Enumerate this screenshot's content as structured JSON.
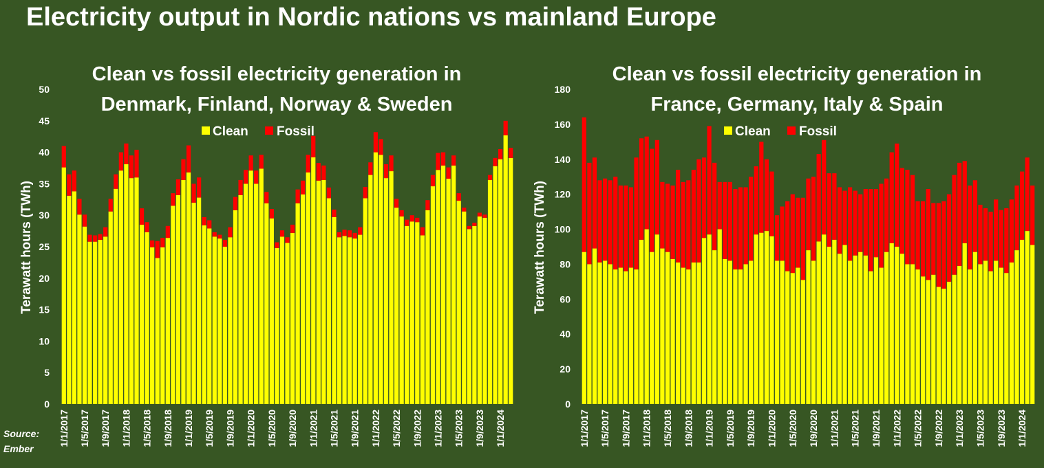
{
  "page": {
    "title": "Electricity output in Nordic nations vs mainland Europe",
    "source_line1": "Source:",
    "source_line2": "Ember"
  },
  "colors": {
    "background": "#375623",
    "clean": "#ffff00",
    "fossil": "#ff0000",
    "text": "#ffffff"
  },
  "chart_data": [
    {
      "type": "bar",
      "stacked": true,
      "title_line1": "Clean vs fossil electricity generation in",
      "title_line2": "Denmark, Finland, Norway & Sweden",
      "ylabel": "Terawatt hours (TWh)",
      "ylim": [
        0,
        50
      ],
      "yticks": [
        0,
        5,
        10,
        15,
        20,
        25,
        30,
        35,
        40,
        45,
        50
      ],
      "grid": false,
      "legend": "top-center",
      "tick_labels": [
        "1/1/2017",
        "1/5/2017",
        "1/9/2017",
        "1/1/2018",
        "1/5/2018",
        "1/9/2018",
        "1/1/2019",
        "1/5/2019",
        "1/9/2019",
        "1/1/2020",
        "1/5/2020",
        "1/9/2020",
        "1/1/2021",
        "1/5/2021",
        "1/9/2021",
        "1/1/2022",
        "1/5/2022",
        "1/9/2022",
        "1/1/2023",
        "1/5/2023",
        "1/9/2023",
        "1/1/2024"
      ],
      "series": [
        {
          "name": "Clean",
          "color": "#ffff00",
          "values": [
            37.6,
            33.1,
            33.8,
            30.1,
            28.2,
            25.8,
            25.8,
            26.1,
            26.6,
            30.6,
            34.2,
            37.1,
            38.1,
            35.9,
            36.0,
            28.5,
            27.3,
            24.9,
            23.2,
            24.9,
            26.4,
            31.5,
            33.2,
            35.6,
            36.8,
            32.0,
            32.8,
            28.4,
            27.9,
            26.6,
            26.3,
            25.0,
            26.5,
            30.8,
            33.2,
            35.0,
            37.1,
            35.0,
            37.4,
            31.9,
            29.5,
            24.8,
            26.6,
            25.6,
            27.2,
            31.9,
            33.3,
            36.8,
            39.2,
            35.5,
            35.6,
            32.7,
            29.7,
            26.5,
            26.7,
            26.5,
            26.3,
            26.9,
            32.7,
            36.4,
            40.0,
            39.6,
            35.9,
            37.0,
            31.2,
            29.8,
            28.3,
            29.0,
            28.9,
            26.8,
            30.8,
            34.6,
            37.2,
            37.9,
            35.8,
            37.9,
            32.3,
            30.6,
            27.8,
            28.3,
            29.8,
            29.6,
            35.6,
            37.8,
            38.9,
            42.7,
            39.1
          ]
        },
        {
          "name": "Fossil",
          "color": "#ff0000",
          "values": [
            3.4,
            3.4,
            3.3,
            2.5,
            1.9,
            1.1,
            1.0,
            0.9,
            1.5,
            2.0,
            2.3,
            2.9,
            3.3,
            3.6,
            4.4,
            2.6,
            1.6,
            1.1,
            2.7,
            1.5,
            1.9,
            2.0,
            2.5,
            3.3,
            4.3,
            3.0,
            3.2,
            1.3,
            1.3,
            0.7,
            0.6,
            1.1,
            1.6,
            2.1,
            2.4,
            2.2,
            2.4,
            2.1,
            2.2,
            1.8,
            1.5,
            0.9,
            1.0,
            0.9,
            1.3,
            2.2,
            2.2,
            2.8,
            3.4,
            2.8,
            2.3,
            1.7,
            1.2,
            0.8,
            1.0,
            1.1,
            0.9,
            1.2,
            1.8,
            2.0,
            3.2,
            2.5,
            2.2,
            2.5,
            1.4,
            1.0,
            1.0,
            1.0,
            0.7,
            1.3,
            1.6,
            1.8,
            2.7,
            2.1,
            1.8,
            1.6,
            1.2,
            0.6,
            0.5,
            0.5,
            0.6,
            0.5,
            0.8,
            1.3,
            1.6,
            2.3,
            1.6
          ]
        }
      ]
    },
    {
      "type": "bar",
      "stacked": true,
      "title_line1": "Clean vs fossil electricity generation in",
      "title_line2": "France, Germany, Italy & Spain",
      "ylabel": "Terawatt hours (TWh)",
      "ylim": [
        0,
        180
      ],
      "yticks": [
        0,
        20,
        40,
        60,
        80,
        100,
        120,
        140,
        160,
        180
      ],
      "grid": false,
      "legend": "top-center",
      "tick_labels": [
        "1/1/2017",
        "1/5/2017",
        "1/9/2017",
        "1/1/2018",
        "1/5/2018",
        "1/9/2018",
        "1/1/2019",
        "1/5/2019",
        "1/9/2019",
        "1/1/2020",
        "1/5/2020",
        "1/9/2020",
        "1/1/2021",
        "1/5/2021",
        "1/9/2021",
        "1/1/2022",
        "1/5/2022",
        "1/9/2022",
        "1/1/2023",
        "1/5/2023",
        "1/9/2023",
        "1/1/2024"
      ],
      "series": [
        {
          "name": "Clean",
          "color": "#ffff00",
          "values": [
            87,
            80,
            89,
            81,
            82,
            80,
            77,
            78,
            76,
            78,
            77,
            94,
            100,
            87,
            97,
            89,
            87,
            83,
            81,
            78,
            77,
            81,
            81,
            95,
            97,
            88,
            100,
            83,
            82,
            77,
            77,
            80,
            82,
            97,
            98,
            99,
            96,
            82,
            82,
            76,
            75,
            78,
            71,
            88,
            82,
            93,
            97,
            90,
            94,
            86,
            91,
            82,
            85,
            87,
            85,
            76,
            84,
            78,
            87,
            92,
            90,
            86,
            80,
            80,
            77,
            73,
            71,
            74,
            67,
            66,
            70,
            74,
            79,
            92,
            77,
            87,
            80,
            82,
            76,
            82,
            78,
            75,
            81,
            88,
            94,
            99,
            91
          ]
        },
        {
          "name": "Fossil",
          "color": "#ff0000",
          "values": [
            77,
            58,
            52,
            47,
            47,
            48,
            53,
            47,
            49,
            46,
            64,
            58,
            53,
            59,
            54,
            38,
            39,
            42,
            53,
            49,
            51,
            53,
            59,
            46,
            62,
            50,
            27,
            44,
            45,
            46,
            47,
            44,
            48,
            39,
            52,
            41,
            37,
            26,
            31,
            40,
            45,
            40,
            47,
            41,
            48,
            50,
            54,
            42,
            38,
            38,
            31,
            42,
            37,
            33,
            38,
            47,
            39,
            48,
            42,
            52,
            59,
            49,
            54,
            51,
            39,
            43,
            52,
            41,
            48,
            50,
            50,
            57,
            59,
            47,
            48,
            41,
            34,
            30,
            34,
            35,
            33,
            37,
            36,
            37,
            39,
            42,
            34
          ]
        }
      ]
    }
  ]
}
